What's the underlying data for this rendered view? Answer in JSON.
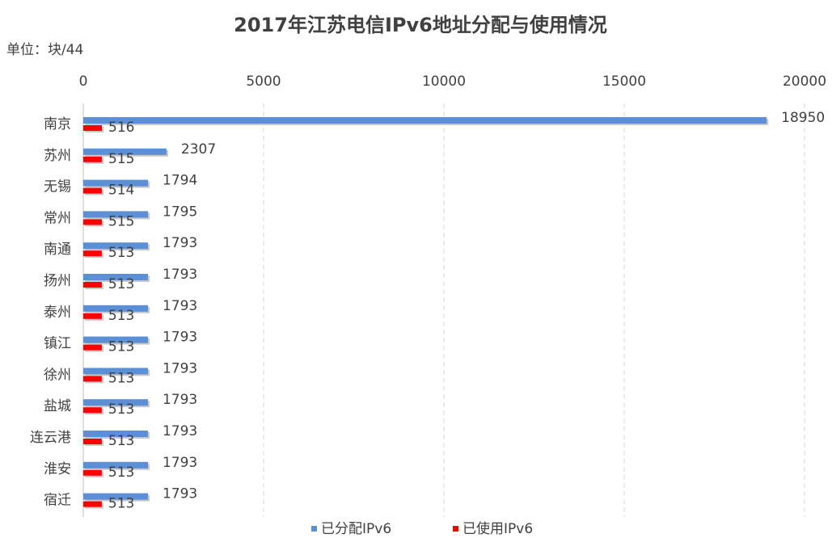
{
  "chart_data": {
    "type": "bar",
    "title": "2017年江苏电信IPv6地址分配与使用情况",
    "subtitle": "单位：块/44",
    "categories": [
      "南京",
      "苏州",
      "无锡",
      "常州",
      "南通",
      "扬州",
      "泰州",
      "镇江",
      "徐州",
      "盐城",
      "连云港",
      "淮安",
      "宿迁"
    ],
    "series": [
      {
        "name": "已分配IPv6",
        "color": "#5b8fd6",
        "values": [
          18950,
          2307,
          1794,
          1795,
          1793,
          1793,
          1793,
          1793,
          1793,
          1793,
          1793,
          1793,
          1793
        ]
      },
      {
        "name": "已使用IPv6",
        "color": "#ff0000",
        "values": [
          516,
          515,
          514,
          515,
          513,
          513,
          513,
          513,
          513,
          513,
          513,
          513,
          513
        ]
      }
    ],
    "xlim": [
      0,
      20000
    ],
    "xticks": [
      0,
      5000,
      10000,
      15000,
      20000
    ],
    "grid": true,
    "legend": "bottom"
  }
}
